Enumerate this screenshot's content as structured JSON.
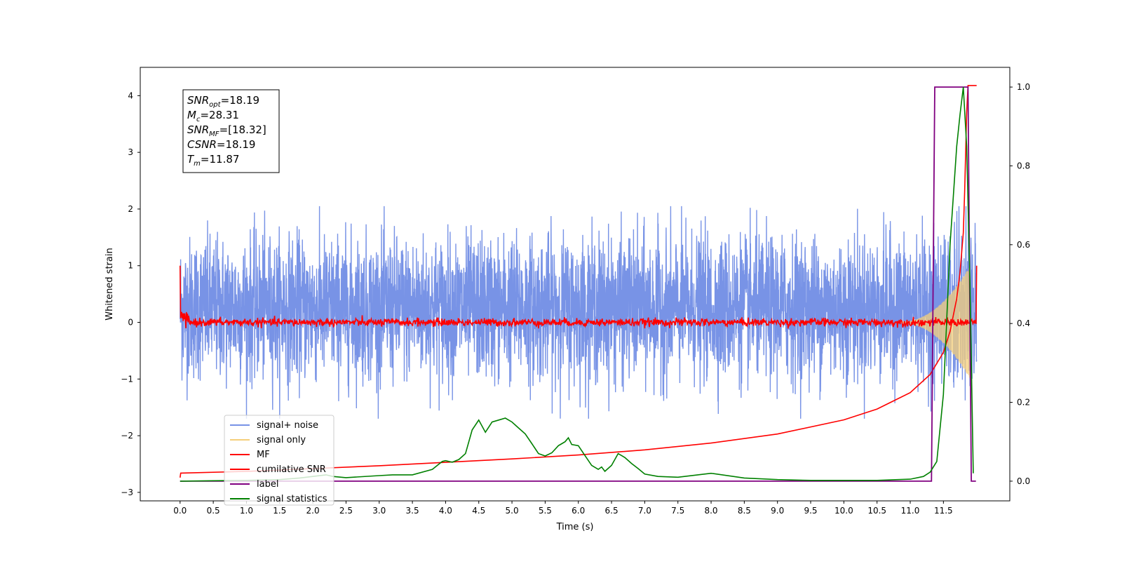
{
  "chart_data": {
    "type": "line",
    "xlabel": "Time (s)",
    "ylabel": "Whitened strain",
    "xlim": [
      -0.6,
      12.5
    ],
    "ylim": [
      -3.15,
      4.5
    ],
    "y2lim": [
      -0.05,
      1.05
    ],
    "x_ticks": [
      "0.0",
      "0.5",
      "1.0",
      "1.5",
      "2.0",
      "2.5",
      "3.0",
      "3.5",
      "4.0",
      "4.5",
      "5.0",
      "5.5",
      "6.0",
      "6.5",
      "7.0",
      "7.5",
      "8.0",
      "8.5",
      "9.0",
      "9.5",
      "10.0",
      "10.5",
      "11.0",
      "11.5"
    ],
    "y_ticks": [
      "−3",
      "−2",
      "−1",
      "0",
      "1",
      "2",
      "3",
      "4"
    ],
    "y2_ticks": [
      "0.0",
      "0.2",
      "0.4",
      "0.6",
      "0.8",
      "1.0"
    ],
    "annotation_lines": [
      {
        "base": "SNR",
        "sub": "opt",
        "rest": "=18.19"
      },
      {
        "base": "M",
        "sub": "c",
        "rest": "=28.31"
      },
      {
        "base": "SNR",
        "sub": "MF",
        "rest": "=[18.32]"
      },
      {
        "base": "CSNR",
        "sub": "",
        "rest": "=18.19"
      },
      {
        "base": "T",
        "sub": "m",
        "rest": "=11.87"
      }
    ],
    "legend": [
      {
        "name": "signal+ noise",
        "color": "#7893e6"
      },
      {
        "name": "signal only",
        "color": "#f5cf7a"
      },
      {
        "name": "MF",
        "color": "#ff0000"
      },
      {
        "name": "cumilative SNR",
        "color": "#ff0000"
      },
      {
        "name": "label",
        "color": "#800080"
      },
      {
        "name": "signal statistics",
        "color": "#008000"
      }
    ],
    "series": [
      {
        "name": "signal+ noise",
        "axis": "left",
        "color": "#7893e6",
        "x_range": [
          0.0,
          12.0
        ],
        "envelope_approx": [
          -1.7,
          2.05
        ]
      },
      {
        "name": "signal only",
        "axis": "left",
        "color": "#f5cf7a",
        "x_range": [
          10.8,
          11.9
        ],
        "envelope_max_approx": 1.0
      },
      {
        "name": "MF",
        "axis": "left",
        "color": "#ff0000",
        "x_range": [
          0.0,
          12.0
        ],
        "level_approx": 0.0,
        "end_values": [
          1.0,
          1.0
        ]
      },
      {
        "name": "cumilative SNR",
        "axis": "right",
        "color": "#ff0000",
        "x": [
          0.0,
          0.01,
          1,
          2,
          3,
          4,
          5,
          6,
          7,
          8,
          9,
          10,
          10.5,
          11,
          11.3,
          11.5,
          11.6,
          11.7,
          11.75,
          11.8,
          11.82,
          11.85,
          11.87,
          12.0
        ],
        "y": [
          -2.74,
          -2.66,
          -2.63,
          -2.58,
          -2.53,
          -2.47,
          -2.41,
          -2.34,
          -2.25,
          -2.13,
          -1.97,
          -1.72,
          -1.53,
          -1.24,
          -0.92,
          -0.53,
          -0.16,
          0.42,
          0.88,
          1.58,
          2.3,
          3.7,
          4.18,
          4.18
        ]
      },
      {
        "name": "label",
        "axis": "right",
        "color": "#800080",
        "x": [
          0.0,
          11.32,
          11.37,
          11.87,
          11.92,
          11.99
        ],
        "y": [
          0.0,
          0.0,
          1.0,
          1.0,
          0.0,
          0.0
        ]
      },
      {
        "name": "signal statistics",
        "axis": "right",
        "color": "#008000",
        "x": [
          0.0,
          0.5,
          1.0,
          1.5,
          1.8,
          2.0,
          2.2,
          2.3,
          2.5,
          3.0,
          3.2,
          3.5,
          3.8,
          3.95,
          4.0,
          4.1,
          4.2,
          4.3,
          4.4,
          4.5,
          4.6,
          4.7,
          4.8,
          4.9,
          5.0,
          5.1,
          5.2,
          5.3,
          5.4,
          5.5,
          5.6,
          5.7,
          5.75,
          5.8,
          5.85,
          5.9,
          6.0,
          6.1,
          6.2,
          6.3,
          6.35,
          6.4,
          6.5,
          6.6,
          6.7,
          6.8,
          6.9,
          7.0,
          7.2,
          7.5,
          8.0,
          8.5,
          9.0,
          9.5,
          10.0,
          10.5,
          11.0,
          11.2,
          11.3,
          11.4,
          11.5,
          11.6,
          11.7,
          11.75,
          11.8,
          11.85,
          11.9,
          11.95
        ],
        "y": [
          0.0,
          0.001,
          0.002,
          0.004,
          0.008,
          0.012,
          0.016,
          0.012,
          0.009,
          0.014,
          0.016,
          0.016,
          0.03,
          0.05,
          0.052,
          0.048,
          0.055,
          0.07,
          0.13,
          0.155,
          0.124,
          0.15,
          0.155,
          0.16,
          0.15,
          0.135,
          0.12,
          0.095,
          0.07,
          0.064,
          0.072,
          0.09,
          0.095,
          0.1,
          0.11,
          0.093,
          0.09,
          0.065,
          0.04,
          0.03,
          0.036,
          0.025,
          0.04,
          0.07,
          0.06,
          0.045,
          0.032,
          0.018,
          0.012,
          0.01,
          0.02,
          0.008,
          0.004,
          0.002,
          0.002,
          0.002,
          0.005,
          0.012,
          0.023,
          0.05,
          0.22,
          0.6,
          0.85,
          0.93,
          1.0,
          0.85,
          0.5,
          0.02
        ]
      }
    ]
  }
}
